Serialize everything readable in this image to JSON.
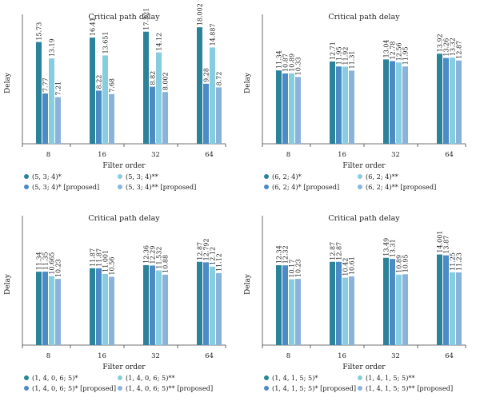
{
  "colors": [
    "#2b8399",
    "#4d8bc5",
    "#86cde0",
    "#8ab3dc"
  ],
  "chart_data": [
    {
      "type": "bar",
      "title": "Critical path delay",
      "xlabel": "Filter order",
      "ylabel": "Delay",
      "categories": [
        "8",
        "16",
        "32",
        "64"
      ],
      "ylim": [
        0,
        20
      ],
      "series": [
        {
          "name": "(5, 3; 4)*",
          "values": [
            15.73,
            16.41,
            17.321,
            18.002
          ],
          "labels": [
            "15.73",
            "16.41",
            "17.321",
            "18.002"
          ]
        },
        {
          "name": "(5, 3; 4)* [proposed]",
          "values": [
            7.77,
            8.22,
            8.82,
            9.28
          ],
          "labels": [
            "7.77",
            "8.22",
            "8.82",
            "9.28"
          ]
        },
        {
          "name": "(5, 3; 4)**",
          "values": [
            13.19,
            13.651,
            14.12,
            14.887
          ],
          "labels": [
            "13.19",
            "13.651",
            "14.12",
            "14.887"
          ]
        },
        {
          "name": "(5, 3; 4)** [proposed]",
          "values": [
            7.21,
            7.68,
            8.002,
            8.72
          ],
          "labels": [
            "7.21",
            "7.68",
            "8.002",
            "8.72"
          ]
        }
      ]
    },
    {
      "type": "bar",
      "title": "Critical path delay",
      "xlabel": "Filter order",
      "ylabel": "Delay",
      "categories": [
        "8",
        "16",
        "32",
        "64"
      ],
      "ylim": [
        0,
        20
      ],
      "series": [
        {
          "name": "(6, 2; 4)*",
          "values": [
            11.34,
            12.71,
            13.04,
            13.92
          ],
          "labels": [
            "11.34",
            "12.71",
            "13.04",
            "13.92"
          ]
        },
        {
          "name": "(6, 2; 4)* [proposed]",
          "values": [
            10.87,
            11.95,
            12.78,
            13.26
          ],
          "labels": [
            "10.87",
            "11.95",
            "12.78",
            "13.26"
          ]
        },
        {
          "name": "(6, 2; 4)**",
          "values": [
            10.89,
            11.92,
            12.56,
            13.32
          ],
          "labels": [
            "10.89",
            "11.92",
            "12.56",
            "13.32"
          ]
        },
        {
          "name": "(6, 2; 4)** [proposed]",
          "values": [
            10.33,
            11.31,
            11.95,
            12.87
          ],
          "labels": [
            "10.33",
            "11.31",
            "11.95",
            "12.87"
          ]
        }
      ]
    },
    {
      "type": "bar",
      "title": "Critical path delay",
      "xlabel": "Filter order",
      "ylabel": "Delay",
      "categories": [
        "8",
        "16",
        "32",
        "64"
      ],
      "ylim": [
        0,
        20
      ],
      "series": [
        {
          "name": "(1, 4, 0, 6; 5)*",
          "values": [
            11.34,
            11.87,
            12.36,
            12.87
          ],
          "labels": [
            "11.34",
            "11.87",
            "12.36",
            "12.87"
          ]
        },
        {
          "name": "(1, 4, 0, 6; 5)* [proposed]",
          "values": [
            11.35,
            11.87,
            12.29,
            12.792
          ],
          "labels": [
            "11.35",
            "11.87",
            "12.29",
            "12.792"
          ]
        },
        {
          "name": "(1, 4, 0, 6; 5)**",
          "values": [
            10.665,
            11.001,
            11.532,
            12.12
          ],
          "labels": [
            "10.665",
            "11.001",
            "11.532",
            "12.12"
          ]
        },
        {
          "name": "(1, 4, 0, 6; 5)** [proposed]",
          "values": [
            10.23,
            10.56,
            10.88,
            11.12
          ],
          "labels": [
            "10.23",
            "10.56",
            "10.88",
            "11.12"
          ]
        }
      ]
    },
    {
      "type": "bar",
      "title": "Critical path delay",
      "xlabel": "Filter order",
      "ylabel": "Delay",
      "categories": [
        "8",
        "16",
        "32",
        "64"
      ],
      "ylim": [
        0,
        20
      ],
      "series": [
        {
          "name": "(1, 4, 1, 5; 5)*",
          "values": [
            12.34,
            12.87,
            13.49,
            14.001
          ],
          "labels": [
            "12.34",
            "12.87",
            "13.49",
            "14.001"
          ]
        },
        {
          "name": "(1, 4, 1, 5; 5)* [proposed]",
          "values": [
            12.32,
            12.87,
            13.31,
            13.87
          ],
          "labels": [
            "12.32",
            "12.87",
            "13.31",
            "13.87"
          ]
        },
        {
          "name": "(1, 4, 1, 5; 5)**",
          "values": [
            10.17,
            10.42,
            10.89,
            11.25
          ],
          "labels": [
            "10.17",
            "10.42",
            "10.89",
            "11.25"
          ]
        },
        {
          "name": "(1, 4, 1, 5; 5)** [proposed]",
          "values": [
            10.23,
            10.61,
            10.95,
            11.23
          ],
          "labels": [
            "10.23",
            "10.61",
            "10.95",
            "11.23"
          ]
        }
      ]
    }
  ]
}
